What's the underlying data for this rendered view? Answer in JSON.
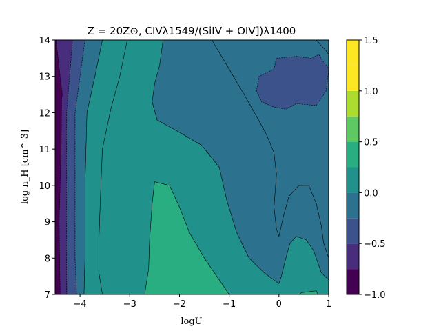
{
  "chart_data": {
    "type": "contour",
    "title": "Z = 20Z⊙, CIVλ1549/(SiIV + OIV])λ1400",
    "xlabel": "logU",
    "ylabel": "log n_H [cm^-3]",
    "xlim": [
      -4.5,
      1
    ],
    "ylim": [
      7,
      14
    ],
    "xticks": [
      -4,
      -3,
      -2,
      -1,
      0,
      1
    ],
    "xtick_labels": [
      "−4",
      "−3",
      "−2",
      "−1",
      "0",
      "1"
    ],
    "yticks": [
      7,
      8,
      9,
      10,
      11,
      12,
      13,
      14
    ],
    "ytick_labels": [
      "7",
      "8",
      "9",
      "10",
      "11",
      "12",
      "13",
      "14"
    ],
    "grid": false,
    "colormap": "viridis",
    "colorbar": {
      "levels": [
        -1.0,
        -0.75,
        -0.5,
        -0.25,
        0.0,
        0.25,
        0.5,
        0.75,
        1.0,
        1.25,
        1.5
      ],
      "tick_values": [
        -1.0,
        -0.5,
        0.0,
        0.5,
        1.0,
        1.5
      ],
      "tick_labels": [
        "−1.0",
        "−0.5",
        "0.0",
        "0.5",
        "1.0",
        "1.5"
      ],
      "colors": [
        "#440154",
        "#472d7b",
        "#3b528b",
        "#2c728e",
        "#21918c",
        "#28ae80",
        "#5ec962",
        "#addc30",
        "#fde725",
        "#fde725"
      ]
    },
    "regions": [
      {
        "level_range": [
          -0.25,
          0.0
        ],
        "color": "#2c728e",
        "boundary": [
          [
            -4.5,
            7
          ],
          [
            1,
            7
          ],
          [
            1,
            14
          ],
          [
            -4.5,
            14
          ]
        ]
      },
      {
        "level_range": [
          -0.75,
          -0.5
        ],
        "color": "#472d7b",
        "boundary": [
          [
            -4.5,
            7
          ],
          [
            -4.25,
            7
          ],
          [
            -4.27,
            8
          ],
          [
            -4.27,
            10
          ],
          [
            -4.27,
            12
          ],
          [
            -4.15,
            14
          ],
          [
            -4.5,
            14
          ]
        ]
      },
      {
        "level_range": [
          -0.5,
          -0.25
        ],
        "color": "#3b528b",
        "boundary": [
          [
            -4.25,
            7
          ],
          [
            -4.07,
            7
          ],
          [
            -4.1,
            8
          ],
          [
            -4.1,
            10
          ],
          [
            -4.1,
            12
          ],
          [
            -3.9,
            14
          ],
          [
            -4.15,
            14
          ],
          [
            -4.27,
            12
          ],
          [
            -4.27,
            10
          ],
          [
            -4.27,
            8
          ]
        ]
      },
      {
        "level_range": [
          -1.0,
          -0.75
        ],
        "color": "#440154",
        "boundary": [
          [
            -4.5,
            7
          ],
          [
            -4.4,
            7
          ],
          [
            -4.42,
            9
          ],
          [
            -4.38,
            11
          ],
          [
            -4.37,
            12.4
          ],
          [
            -4.35,
            12.5
          ],
          [
            -4.4,
            13
          ],
          [
            -4.48,
            14
          ],
          [
            -4.5,
            14
          ]
        ]
      },
      {
        "level_range": [
          0.0,
          0.25
        ],
        "color": "#21918c",
        "boundary": [
          [
            -3.92,
            7
          ],
          [
            1,
            7
          ],
          [
            1,
            7.4
          ],
          [
            0.85,
            7.6
          ],
          [
            0.7,
            8.2
          ],
          [
            0.55,
            8.5
          ],
          [
            0.35,
            8.6
          ],
          [
            0.22,
            8.4
          ],
          [
            0.12,
            7.9
          ],
          [
            0.05,
            7.5
          ],
          [
            0,
            7.3
          ],
          [
            -0.3,
            7.6
          ],
          [
            -0.6,
            8.0
          ],
          [
            -0.85,
            8.7
          ],
          [
            -1.05,
            9.6
          ],
          [
            -1.2,
            10.5
          ],
          [
            -1.55,
            11.1
          ],
          [
            -2.05,
            11.5
          ],
          [
            -2.45,
            11.8
          ],
          [
            -2.55,
            12.3
          ],
          [
            -2.5,
            12.8
          ],
          [
            -2.4,
            13.3
          ],
          [
            -2.35,
            13.8
          ],
          [
            -2.33,
            14
          ],
          [
            -3.55,
            14
          ],
          [
            -3.7,
            13.0
          ],
          [
            -3.86,
            12.0
          ],
          [
            -3.9,
            10.0
          ],
          [
            -3.9,
            8.0
          ]
        ]
      },
      {
        "level_range": [
          0.0,
          0.25
        ],
        "color": "#21918c",
        "boundary": [
          [
            -3.92,
            7
          ],
          [
            -3.55,
            7
          ],
          [
            -3.62,
            7.6
          ],
          [
            -3.62,
            8.5
          ],
          [
            -3.58,
            10.0
          ],
          [
            -3.55,
            11.0
          ],
          [
            -3.38,
            12.1
          ],
          [
            -3.2,
            13.0
          ],
          [
            -3.1,
            13.5
          ],
          [
            -3.05,
            14
          ],
          [
            -3.55,
            14
          ],
          [
            -3.7,
            13.0
          ],
          [
            -3.86,
            12.0
          ],
          [
            -3.9,
            10.0
          ],
          [
            -3.9,
            8.0
          ]
        ]
      },
      {
        "level_range": [
          0.25,
          0.5
        ],
        "color": "#28ae80",
        "boundary": [
          [
            -2.7,
            7
          ],
          [
            -1.0,
            7
          ],
          [
            -1.2,
            7.4
          ],
          [
            -1.5,
            8.0
          ],
          [
            -1.8,
            8.7
          ],
          [
            -2.0,
            9.4
          ],
          [
            -2.2,
            10.0
          ],
          [
            -2.5,
            10.1
          ],
          [
            -2.55,
            9.5
          ],
          [
            -2.6,
            8.5
          ],
          [
            -2.62,
            7.7
          ]
        ]
      },
      {
        "level_range": [
          -0.5,
          -0.25
        ],
        "color": "#3b528b",
        "boundary": [
          [
            0.15,
            12.1
          ],
          [
            0.35,
            12.25
          ],
          [
            0.75,
            12.2
          ],
          [
            0.95,
            12.6
          ],
          [
            1.0,
            13.2
          ],
          [
            0.8,
            13.6
          ],
          [
            0.65,
            13.5
          ],
          [
            0.35,
            13.55
          ],
          [
            -0.05,
            13.5
          ],
          [
            -0.1,
            13.2
          ],
          [
            -0.4,
            13.0
          ],
          [
            -0.45,
            12.6
          ],
          [
            -0.35,
            12.3
          ],
          [
            -0.1,
            12.15
          ]
        ]
      },
      {
        "level_range": [
          0.25,
          0.5
        ],
        "color": "#28ae80",
        "boundary": [
          [
            0.45,
            7.05
          ],
          [
            0.75,
            7.1
          ],
          [
            0.78,
            7.0
          ],
          [
            0.42,
            7.0
          ]
        ]
      }
    ],
    "contour_lines": [
      {
        "level": -0.5,
        "style": "dashed",
        "points": [
          [
            -4.27,
            7
          ],
          [
            -4.27,
            8
          ],
          [
            -4.27,
            10
          ],
          [
            -4.27,
            12
          ],
          [
            -4.15,
            14
          ]
        ]
      },
      {
        "level": -0.75,
        "style": "dashed",
        "points": [
          [
            -4.4,
            7
          ],
          [
            -4.42,
            9
          ],
          [
            -4.38,
            11
          ],
          [
            -4.37,
            12.4
          ],
          [
            -4.4,
            13
          ],
          [
            -4.48,
            14
          ]
        ]
      },
      {
        "level": -0.25,
        "style": "dashed",
        "points": [
          [
            -4.07,
            7
          ],
          [
            -4.1,
            8
          ],
          [
            -4.1,
            10
          ],
          [
            -4.1,
            12
          ],
          [
            -3.9,
            14
          ]
        ]
      },
      {
        "level": 0.0,
        "style": "solid",
        "points": [
          [
            -3.92,
            7
          ],
          [
            -3.9,
            8
          ],
          [
            -3.9,
            10
          ],
          [
            -3.86,
            12
          ],
          [
            -3.7,
            13.0
          ],
          [
            -3.55,
            14
          ]
        ]
      },
      {
        "level": 0.0,
        "style": "solid",
        "points": [
          [
            -3.55,
            7
          ],
          [
            -3.62,
            7.6
          ],
          [
            -3.62,
            8.5
          ],
          [
            -3.58,
            10.0
          ],
          [
            -3.55,
            11.0
          ],
          [
            -3.38,
            12.1
          ],
          [
            -3.2,
            13.0
          ],
          [
            -3.05,
            14
          ]
        ]
      },
      {
        "level": 0.25,
        "style": "solid",
        "points": [
          [
            -2.7,
            7
          ],
          [
            -2.62,
            7.7
          ],
          [
            -2.6,
            8.5
          ],
          [
            -2.55,
            9.5
          ],
          [
            -2.5,
            10.1
          ],
          [
            -2.2,
            10.0
          ],
          [
            -2.0,
            9.4
          ],
          [
            -1.8,
            8.7
          ],
          [
            -1.5,
            8.0
          ],
          [
            -1.2,
            7.4
          ],
          [
            -1.0,
            7
          ]
        ]
      },
      {
        "level": 0.0,
        "style": "solid",
        "points": [
          [
            -2.33,
            14
          ],
          [
            -2.35,
            13.8
          ],
          [
            -2.4,
            13.3
          ],
          [
            -2.5,
            12.8
          ],
          [
            -2.55,
            12.3
          ],
          [
            -2.45,
            11.8
          ],
          [
            -2.05,
            11.5
          ],
          [
            -1.55,
            11.1
          ],
          [
            -1.2,
            10.5
          ],
          [
            -1.05,
            9.6
          ],
          [
            -0.85,
            8.7
          ],
          [
            -0.6,
            8.0
          ],
          [
            -0.3,
            7.6
          ],
          [
            0,
            7.3
          ],
          [
            0.05,
            7.5
          ],
          [
            0.12,
            7.9
          ],
          [
            0.22,
            8.4
          ],
          [
            0.35,
            8.6
          ],
          [
            0.55,
            8.5
          ],
          [
            0.7,
            8.2
          ],
          [
            0.85,
            7.6
          ],
          [
            1,
            7.4
          ]
        ]
      },
      {
        "level": -0.25,
        "style": "solid",
        "points": [
          [
            -1.35,
            14
          ],
          [
            -1.0,
            13.2
          ],
          [
            -0.7,
            12.5
          ],
          [
            -0.45,
            11.9
          ],
          [
            -0.25,
            11.4
          ],
          [
            -0.1,
            10.9
          ],
          [
            -0.05,
            10.3
          ],
          [
            -0.1,
            9.4
          ],
          [
            -0.05,
            8.8
          ],
          [
            0,
            8.6
          ],
          [
            0.1,
            9.2
          ],
          [
            0.2,
            9.7
          ],
          [
            0.4,
            10.0
          ],
          [
            0.6,
            10.0
          ],
          [
            0.75,
            9.5
          ],
          [
            0.85,
            8.9
          ],
          [
            0.9,
            8.4
          ],
          [
            1,
            8.0
          ]
        ]
      },
      {
        "level": -0.5,
        "style": "dashed",
        "points": [
          [
            0.15,
            12.1
          ],
          [
            0.35,
            12.25
          ],
          [
            0.75,
            12.2
          ],
          [
            0.95,
            12.6
          ],
          [
            1.0,
            13.2
          ],
          [
            0.8,
            13.6
          ],
          [
            0.65,
            13.5
          ],
          [
            0.35,
            13.55
          ],
          [
            -0.05,
            13.5
          ],
          [
            -0.1,
            13.2
          ],
          [
            -0.4,
            13.0
          ],
          [
            -0.45,
            12.6
          ],
          [
            -0.35,
            12.3
          ],
          [
            -0.1,
            12.15
          ],
          [
            0.15,
            12.1
          ]
        ]
      },
      {
        "level": -0.25,
        "style": "solid",
        "points": [
          [
            0.75,
            14
          ],
          [
            0.85,
            13.85
          ],
          [
            0.95,
            13.7
          ],
          [
            1,
            13.6
          ]
        ]
      },
      {
        "level": 0.25,
        "style": "solid",
        "points": [
          [
            0.42,
            7.0
          ],
          [
            0.45,
            7.05
          ],
          [
            0.75,
            7.1
          ],
          [
            0.78,
            7.0
          ]
        ]
      }
    ]
  }
}
